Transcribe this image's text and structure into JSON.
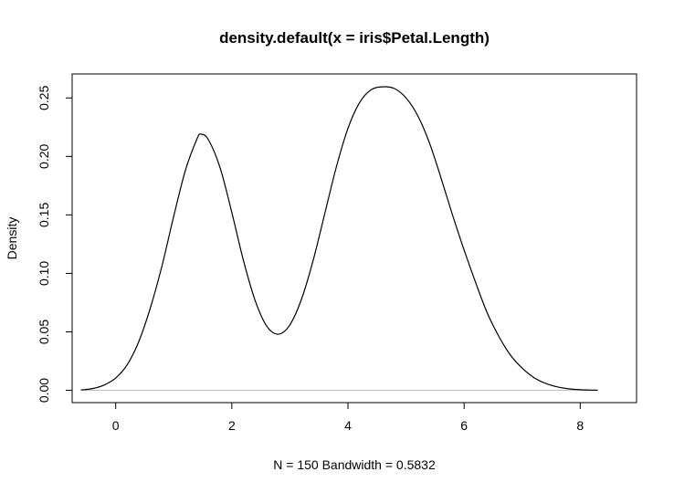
{
  "chart_data": {
    "type": "line",
    "title": "density.default(x = iris$Petal.Length)",
    "xlabel": "N = 150   Bandwidth = 0.5832",
    "ylabel": "Density",
    "xlim": [
      -0.75,
      8.97
    ],
    "ylim": [
      -0.0105,
      0.2705
    ],
    "x_ticks": [
      0,
      2,
      4,
      6,
      8
    ],
    "x_tick_labels": [
      "0",
      "2",
      "4",
      "6",
      "8"
    ],
    "y_ticks": [
      0.0,
      0.05,
      0.1,
      0.15,
      0.2,
      0.25
    ],
    "y_tick_labels": [
      "0.00",
      "0.05",
      "0.10",
      "0.15",
      "0.20",
      "0.25"
    ],
    "grid": false,
    "baseline": 0,
    "colors": {
      "line": "#000000",
      "baseline": "#bebebe",
      "box": "#000000"
    },
    "series": [
      {
        "x": [
          -0.6,
          -0.4,
          -0.2,
          0.0,
          0.2,
          0.4,
          0.6,
          0.8,
          1.0,
          1.2,
          1.4,
          1.47,
          1.6,
          1.8,
          2.0,
          2.2,
          2.4,
          2.6,
          2.8,
          3.0,
          3.2,
          3.4,
          3.6,
          3.8,
          4.0,
          4.2,
          4.4,
          4.6,
          4.8,
          5.0,
          5.2,
          5.4,
          5.6,
          5.8,
          6.0,
          6.2,
          6.4,
          6.6,
          6.8,
          7.0,
          7.2,
          7.4,
          7.6,
          7.8,
          8.0,
          8.2,
          8.3
        ],
        "y": [
          0.0003,
          0.0015,
          0.0045,
          0.0105,
          0.022,
          0.042,
          0.071,
          0.107,
          0.149,
          0.188,
          0.215,
          0.219,
          0.214,
          0.19,
          0.152,
          0.111,
          0.077,
          0.055,
          0.048,
          0.056,
          0.078,
          0.111,
          0.151,
          0.191,
          0.224,
          0.246,
          0.257,
          0.2595,
          0.258,
          0.25,
          0.235,
          0.212,
          0.182,
          0.15,
          0.12,
          0.092,
          0.066,
          0.046,
          0.03,
          0.019,
          0.011,
          0.006,
          0.003,
          0.0013,
          0.0005,
          0.0002,
          0.0001
        ]
      }
    ]
  }
}
